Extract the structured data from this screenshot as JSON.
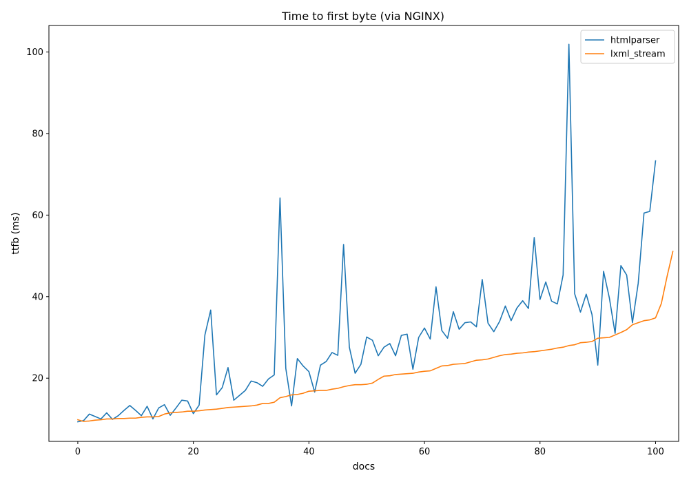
{
  "chart_data": {
    "type": "line",
    "title": "Time to first byte (via NGINX)",
    "xlabel": "docs",
    "ylabel": "ttfb (ms)",
    "xlim": [
      -5,
      104
    ],
    "ylim": [
      4.5,
      106.5
    ],
    "xticks": [
      0,
      20,
      40,
      60,
      80,
      100
    ],
    "yticks": [
      20,
      40,
      60,
      80,
      100
    ],
    "legend_position": "top-right",
    "grid": false,
    "series": [
      {
        "name": "htmlparser",
        "color": "#1f77b4",
        "values": [
          9.3,
          9.6,
          11.2,
          10.6,
          10.0,
          11.5,
          9.9,
          10.8,
          12.1,
          13.3,
          12.1,
          10.8,
          13.1,
          10.0,
          12.7,
          13.5,
          10.9,
          12.7,
          14.6,
          14.4,
          11.3,
          13.4,
          30.6,
          36.7,
          15.9,
          17.7,
          22.6,
          14.6,
          15.8,
          17.0,
          19.3,
          18.9,
          18.0,
          19.8,
          20.8,
          64.2,
          22.4,
          13.2,
          24.8,
          23.0,
          21.6,
          16.6,
          23.2,
          24.1,
          26.3,
          25.6,
          52.8,
          27.6,
          21.2,
          23.4,
          30.1,
          29.3,
          25.5,
          27.6,
          28.5,
          25.5,
          30.5,
          30.8,
          22.2,
          30.0,
          32.3,
          29.6,
          42.4,
          31.7,
          29.8,
          36.3,
          32.0,
          33.6,
          33.8,
          32.6,
          44.2,
          33.5,
          31.4,
          33.9,
          37.7,
          34.1,
          37.2,
          39.0,
          37.1,
          54.5,
          39.3,
          43.6,
          38.9,
          38.2,
          45.3,
          101.9,
          40.7,
          36.2,
          40.6,
          35.6,
          23.2,
          46.2,
          39.7,
          31.0,
          47.6,
          45.3,
          33.6,
          43.3,
          60.5,
          60.9,
          73.3
        ]
      },
      {
        "name": "lxml_stream",
        "color": "#ff7f0e",
        "values": [
          9.8,
          9.4,
          9.5,
          9.7,
          9.8,
          10.0,
          10.0,
          10.1,
          10.1,
          10.2,
          10.2,
          10.4,
          10.5,
          10.5,
          10.6,
          11.2,
          11.5,
          11.6,
          11.7,
          11.9,
          11.9,
          12.0,
          12.2,
          12.3,
          12.4,
          12.6,
          12.8,
          12.9,
          13.0,
          13.1,
          13.2,
          13.4,
          13.8,
          13.8,
          14.1,
          15.2,
          15.5,
          15.9,
          16.0,
          16.3,
          16.8,
          16.9,
          17.0,
          17.0,
          17.3,
          17.5,
          17.9,
          18.2,
          18.4,
          18.4,
          18.5,
          18.8,
          19.7,
          20.5,
          20.6,
          20.9,
          21.0,
          21.1,
          21.2,
          21.5,
          21.7,
          21.8,
          22.4,
          23.0,
          23.1,
          23.4,
          23.5,
          23.6,
          24.0,
          24.4,
          24.5,
          24.7,
          25.1,
          25.5,
          25.8,
          25.9,
          26.1,
          26.2,
          26.4,
          26.5,
          26.7,
          26.9,
          27.1,
          27.4,
          27.6,
          28.0,
          28.2,
          28.7,
          28.8,
          29.0,
          29.8,
          29.9,
          30.0,
          30.6,
          31.2,
          31.9,
          33.1,
          33.6,
          34.1,
          34.3,
          34.8,
          38.3,
          45.0,
          51.1
        ]
      }
    ]
  }
}
